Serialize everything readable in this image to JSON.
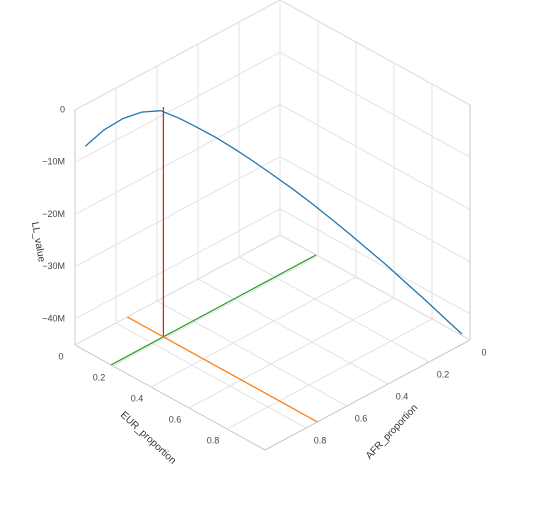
{
  "chart_data": {
    "type": "line3d",
    "xaxis_title": "AFR_proportion",
    "yaxis_title": "EUR_proportion",
    "zaxis_title": "LL_value",
    "xlim": [
      0,
      1
    ],
    "ylim": [
      0,
      1
    ],
    "zlim": [
      -45000000,
      0
    ],
    "xticks": [
      0,
      0.2,
      0.4,
      0.6,
      0.8
    ],
    "yticks": [
      0,
      0.2,
      0.4,
      0.6,
      0.8
    ],
    "zticks": [
      0,
      {
        "value": -10000000,
        "label": "−10M"
      },
      {
        "value": -20000000,
        "label": "−20M"
      },
      {
        "value": -30000000,
        "label": "−30M"
      },
      {
        "value": -40000000,
        "label": "−40M"
      }
    ],
    "grid": true,
    "series": [
      {
        "color": "#1f77b4",
        "x": [
          0.95,
          0.905,
          0.859,
          0.814,
          0.768,
          0.723,
          0.677,
          0.632,
          0.586,
          0.541,
          0.495,
          0.45,
          0.404,
          0.359,
          0.313,
          0.268,
          0.222,
          0.177,
          0.131,
          0.086,
          0.04
        ],
        "y": [
          0,
          0.05,
          0.1,
          0.15,
          0.2,
          0.25,
          0.3,
          0.35,
          0.4,
          0.45,
          0.5,
          0.55,
          0.6,
          0.65,
          0.7,
          0.75,
          0.8,
          0.85,
          0.9,
          0.95,
          1
        ],
        "z": [
          -8000000,
          -4800000,
          -2600000,
          -1300000,
          -1000000,
          -2400000,
          -4200000,
          -6100000,
          -8300000,
          -10600000,
          -13100000,
          -15600000,
          -18300000,
          -21100000,
          -24000000,
          -27000000,
          -30000000,
          -33200000,
          -36400000,
          -39700000,
          -43000000
        ]
      },
      {
        "color": "#d62728",
        "x": [
          0.745,
          0.745
        ],
        "y": [
          0.19,
          0.19
        ],
        "z": [
          -1000000,
          -45000000
        ]
      },
      {
        "color": "#2ca02c",
        "x": [
          0,
          1
        ],
        "y": [
          0.19,
          0.19
        ],
        "z": [
          -45000000,
          -45000000
        ]
      },
      {
        "color": "#ff7f0e",
        "x": [
          0.745,
          0.745
        ],
        "y": [
          0,
          1
        ],
        "z": [
          -45000000,
          -45000000
        ]
      }
    ]
  }
}
